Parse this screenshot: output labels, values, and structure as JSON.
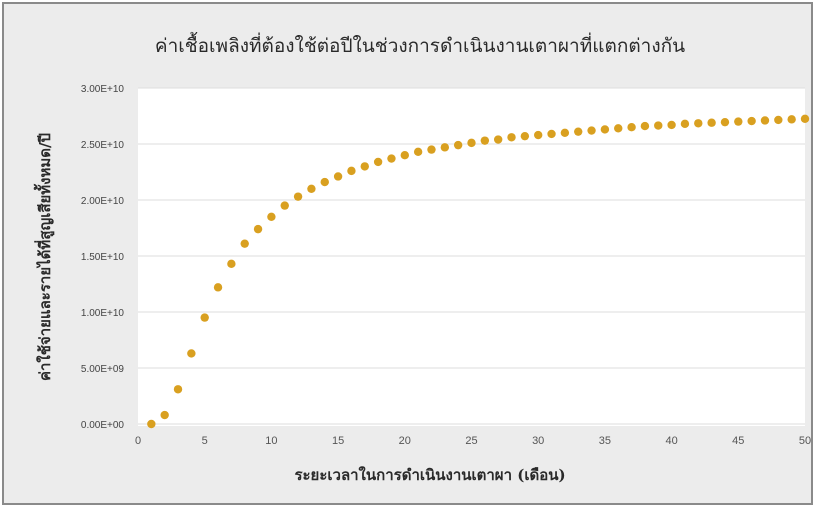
{
  "chart_data": {
    "type": "scatter",
    "title": "ค่าเชื้อเพลิงที่ต้องใช้ต่อปีในช่วงการดำเนินงานเตาผาที่แตกต่างกัน",
    "xlabel": "ระยะเวลาในการดำเนินงานเตาผา (เดือน)",
    "ylabel": "ค่าใช้จ่ายและรายได้ที่สูญเสียทั้งหมด/ปี",
    "xlim": [
      0,
      50
    ],
    "ylim": [
      0,
      30000000000
    ],
    "xticks": [
      0,
      5,
      10,
      15,
      20,
      25,
      30,
      35,
      40,
      45,
      50
    ],
    "xtick_labels": [
      "0",
      "5",
      "10",
      "15",
      "20",
      "25",
      "30",
      "35",
      "40",
      "45",
      "50"
    ],
    "yticks": [
      0,
      5000000000,
      10000000000,
      15000000000,
      20000000000,
      25000000000,
      30000000000
    ],
    "ytick_labels": [
      "0.00E+00",
      "5.00E+09",
      "1.00E+10",
      "1.50E+10",
      "2.00E+10",
      "2.50E+10",
      "3.00E+10"
    ],
    "grid": "horizontal",
    "marker_color": "#d9a020",
    "series": [
      {
        "x": [
          1,
          2,
          3,
          4,
          5,
          6,
          7,
          8,
          9,
          10,
          11,
          12,
          13,
          14,
          15,
          16,
          17,
          18,
          19,
          20,
          21,
          22,
          23,
          24,
          25,
          26,
          27,
          28,
          29,
          30,
          31,
          32,
          33,
          34,
          35,
          36,
          37,
          38,
          39,
          40,
          41,
          42,
          43,
          44,
          45,
          46,
          47,
          48,
          49,
          50
        ],
        "y": [
          0,
          800000000,
          3100000000,
          6300000000,
          9500000000,
          12200000000,
          14300000000,
          16100000000,
          17400000000,
          18500000000,
          19500000000,
          20300000000,
          21000000000,
          21600000000,
          22100000000,
          22600000000,
          23000000000,
          23400000000,
          23700000000,
          24000000000,
          24300000000,
          24500000000,
          24700000000,
          24900000000,
          25100000000,
          25300000000,
          25400000000,
          25600000000,
          25700000000,
          25800000000,
          25900000000,
          26000000000,
          26100000000,
          26200000000,
          26300000000,
          26400000000,
          26500000000,
          26600000000,
          26650000000,
          26700000000,
          26800000000,
          26850000000,
          26900000000,
          26950000000,
          27000000000,
          27050000000,
          27100000000,
          27150000000,
          27200000000,
          27250000000
        ]
      }
    ]
  }
}
